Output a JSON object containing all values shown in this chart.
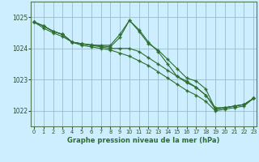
{
  "xlabel": "Graphe pression niveau de la mer (hPa)",
  "bg_color": "#cceeff",
  "grid_color": "#99bbcc",
  "line_color": "#2d6e2d",
  "ylim": [
    1021.5,
    1025.5
  ],
  "xlim": [
    -0.3,
    23.3
  ],
  "yticks": [
    1022,
    1023,
    1024,
    1025
  ],
  "xticks": [
    0,
    1,
    2,
    3,
    4,
    5,
    6,
    7,
    8,
    9,
    10,
    11,
    12,
    13,
    14,
    15,
    16,
    17,
    18,
    19,
    20,
    21,
    22,
    23
  ],
  "series1": [
    1024.85,
    1024.72,
    1024.55,
    1024.45,
    1024.2,
    1024.15,
    1024.12,
    1024.08,
    1024.05,
    1024.35,
    1024.9,
    1024.55,
    1024.15,
    1023.95,
    1023.65,
    1023.35,
    1023.05,
    1022.95,
    1022.7,
    1022.05,
    1022.1,
    1022.15,
    1022.2,
    1022.4
  ],
  "series2": [
    1024.85,
    1024.72,
    1024.55,
    1024.45,
    1024.2,
    1024.15,
    1024.1,
    1024.05,
    1024.0,
    1024.0,
    1024.0,
    1023.9,
    1023.7,
    1023.5,
    1023.3,
    1023.1,
    1022.9,
    1022.75,
    1022.5,
    1022.1,
    1022.1,
    1022.15,
    1022.2,
    1022.4
  ],
  "series3": [
    1024.85,
    1024.65,
    1024.5,
    1024.38,
    1024.2,
    1024.1,
    1024.05,
    1024.0,
    1023.95,
    1023.85,
    1023.75,
    1023.6,
    1023.45,
    1023.25,
    1023.05,
    1022.85,
    1022.65,
    1022.5,
    1022.3,
    1022.0,
    1022.05,
    1022.1,
    1022.15,
    1022.4
  ],
  "series4": [
    1024.85,
    1024.72,
    1024.55,
    1024.45,
    1024.2,
    1024.15,
    1024.1,
    1024.1,
    1024.1,
    1024.45,
    1024.9,
    1024.6,
    1024.2,
    1023.9,
    1023.5,
    1023.1,
    1022.95,
    1022.75,
    1022.5,
    1022.05,
    1022.1,
    1022.15,
    1022.2,
    1022.4
  ]
}
